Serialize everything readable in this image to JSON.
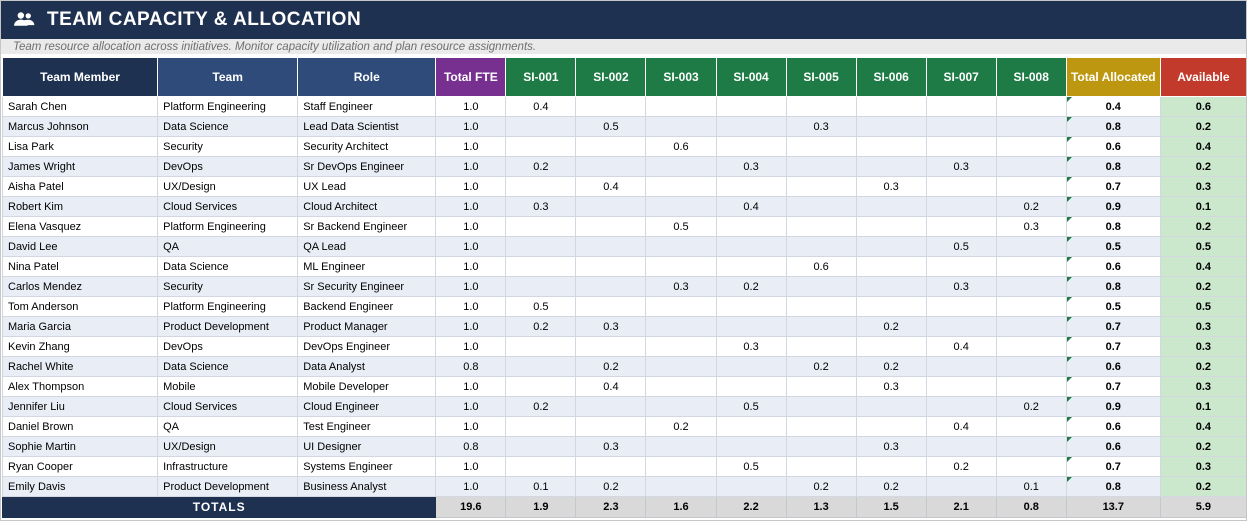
{
  "header": {
    "title": "TEAM CAPACITY & ALLOCATION",
    "subtitle": "Team resource allocation across initiatives. Monitor capacity utilization and plan resource assignments.",
    "icon": "people-icon"
  },
  "colors": {
    "title_navy": "#1F3150",
    "header_mid_navy": "#2E4B7A",
    "fte_purple": "#772F90",
    "initiative_green": "#1E7B45",
    "total_gold": "#BD9710",
    "available_red": "#C23A2B",
    "row_stripe": "#E9EDF6",
    "available_cell_green": "#CBE7CC",
    "totals_gray": "#D9D9D9",
    "formula_triangle_green": "#1E7B45"
  },
  "table": {
    "columns": [
      "Team Member",
      "Team",
      "Role",
      "Total FTE",
      "SI-001",
      "SI-002",
      "SI-003",
      "SI-004",
      "SI-005",
      "SI-006",
      "SI-007",
      "SI-008",
      "Total Allocated",
      "Available"
    ],
    "rows": [
      {
        "name": "Sarah Chen",
        "team": "Platform Engineering",
        "role": "Staff Engineer",
        "fte": "1.0",
        "allocations": [
          "0.4",
          "",
          "",
          "",
          "",
          "",
          "",
          ""
        ],
        "total": "0.4",
        "available": "0.6"
      },
      {
        "name": "Marcus Johnson",
        "team": "Data Science",
        "role": "Lead Data Scientist",
        "fte": "1.0",
        "allocations": [
          "",
          "0.5",
          "",
          "",
          "0.3",
          "",
          "",
          ""
        ],
        "total": "0.8",
        "available": "0.2"
      },
      {
        "name": "Lisa Park",
        "team": "Security",
        "role": "Security Architect",
        "fte": "1.0",
        "allocations": [
          "",
          "",
          "0.6",
          "",
          "",
          "",
          "",
          ""
        ],
        "total": "0.6",
        "available": "0.4"
      },
      {
        "name": "James Wright",
        "team": "DevOps",
        "role": "Sr DevOps Engineer",
        "fte": "1.0",
        "allocations": [
          "0.2",
          "",
          "",
          "0.3",
          "",
          "",
          "0.3",
          ""
        ],
        "total": "0.8",
        "available": "0.2"
      },
      {
        "name": "Aisha Patel",
        "team": "UX/Design",
        "role": "UX Lead",
        "fte": "1.0",
        "allocations": [
          "",
          "0.4",
          "",
          "",
          "",
          "0.3",
          "",
          ""
        ],
        "total": "0.7",
        "available": "0.3"
      },
      {
        "name": "Robert Kim",
        "team": "Cloud Services",
        "role": "Cloud Architect",
        "fte": "1.0",
        "allocations": [
          "0.3",
          "",
          "",
          "0.4",
          "",
          "",
          "",
          "0.2"
        ],
        "total": "0.9",
        "available": "0.1"
      },
      {
        "name": "Elena Vasquez",
        "team": "Platform Engineering",
        "role": "Sr Backend Engineer",
        "fte": "1.0",
        "allocations": [
          "",
          "",
          "0.5",
          "",
          "",
          "",
          "",
          "0.3"
        ],
        "total": "0.8",
        "available": "0.2"
      },
      {
        "name": "David Lee",
        "team": "QA",
        "role": "QA Lead",
        "fte": "1.0",
        "allocations": [
          "",
          "",
          "",
          "",
          "",
          "",
          "0.5",
          ""
        ],
        "total": "0.5",
        "available": "0.5"
      },
      {
        "name": "Nina Patel",
        "team": "Data Science",
        "role": "ML Engineer",
        "fte": "1.0",
        "allocations": [
          "",
          "",
          "",
          "",
          "0.6",
          "",
          "",
          ""
        ],
        "total": "0.6",
        "available": "0.4"
      },
      {
        "name": "Carlos Mendez",
        "team": "Security",
        "role": "Sr Security Engineer",
        "fte": "1.0",
        "allocations": [
          "",
          "",
          "0.3",
          "0.2",
          "",
          "",
          "0.3",
          ""
        ],
        "total": "0.8",
        "available": "0.2"
      },
      {
        "name": "Tom Anderson",
        "team": "Platform Engineering",
        "role": "Backend Engineer",
        "fte": "1.0",
        "allocations": [
          "0.5",
          "",
          "",
          "",
          "",
          "",
          "",
          ""
        ],
        "total": "0.5",
        "available": "0.5"
      },
      {
        "name": "Maria Garcia",
        "team": "Product Development",
        "role": "Product Manager",
        "fte": "1.0",
        "allocations": [
          "0.2",
          "0.3",
          "",
          "",
          "",
          "0.2",
          "",
          ""
        ],
        "total": "0.7",
        "available": "0.3"
      },
      {
        "name": "Kevin Zhang",
        "team": "DevOps",
        "role": "DevOps Engineer",
        "fte": "1.0",
        "allocations": [
          "",
          "",
          "",
          "0.3",
          "",
          "",
          "0.4",
          ""
        ],
        "total": "0.7",
        "available": "0.3"
      },
      {
        "name": "Rachel White",
        "team": "Data Science",
        "role": "Data Analyst",
        "fte": "0.8",
        "allocations": [
          "",
          "0.2",
          "",
          "",
          "0.2",
          "0.2",
          "",
          ""
        ],
        "total": "0.6",
        "available": "0.2"
      },
      {
        "name": "Alex Thompson",
        "team": "Mobile",
        "role": "Mobile Developer",
        "fte": "1.0",
        "allocations": [
          "",
          "0.4",
          "",
          "",
          "",
          "0.3",
          "",
          ""
        ],
        "total": "0.7",
        "available": "0.3"
      },
      {
        "name": "Jennifer Liu",
        "team": "Cloud Services",
        "role": "Cloud Engineer",
        "fte": "1.0",
        "allocations": [
          "0.2",
          "",
          "",
          "0.5",
          "",
          "",
          "",
          "0.2"
        ],
        "total": "0.9",
        "available": "0.1"
      },
      {
        "name": "Daniel Brown",
        "team": "QA",
        "role": "Test Engineer",
        "fte": "1.0",
        "allocations": [
          "",
          "",
          "0.2",
          "",
          "",
          "",
          "0.4",
          ""
        ],
        "total": "0.6",
        "available": "0.4"
      },
      {
        "name": "Sophie Martin",
        "team": "UX/Design",
        "role": "UI Designer",
        "fte": "0.8",
        "allocations": [
          "",
          "0.3",
          "",
          "",
          "",
          "0.3",
          "",
          ""
        ],
        "total": "0.6",
        "available": "0.2"
      },
      {
        "name": "Ryan Cooper",
        "team": "Infrastructure",
        "role": "Systems Engineer",
        "fte": "1.0",
        "allocations": [
          "",
          "",
          "",
          "0.5",
          "",
          "",
          "0.2",
          ""
        ],
        "total": "0.7",
        "available": "0.3"
      },
      {
        "name": "Emily Davis",
        "team": "Product Development",
        "role": "Business Analyst",
        "fte": "1.0",
        "allocations": [
          "0.1",
          "0.2",
          "",
          "",
          "0.2",
          "0.2",
          "",
          "0.1"
        ],
        "total": "0.8",
        "available": "0.2"
      }
    ],
    "totals": {
      "label": "TOTALS",
      "fte": "19.6",
      "allocations": [
        "1.9",
        "2.3",
        "1.6",
        "2.2",
        "1.3",
        "1.5",
        "2.1",
        "0.8"
      ],
      "total": "13.7",
      "available": "5.9"
    }
  }
}
